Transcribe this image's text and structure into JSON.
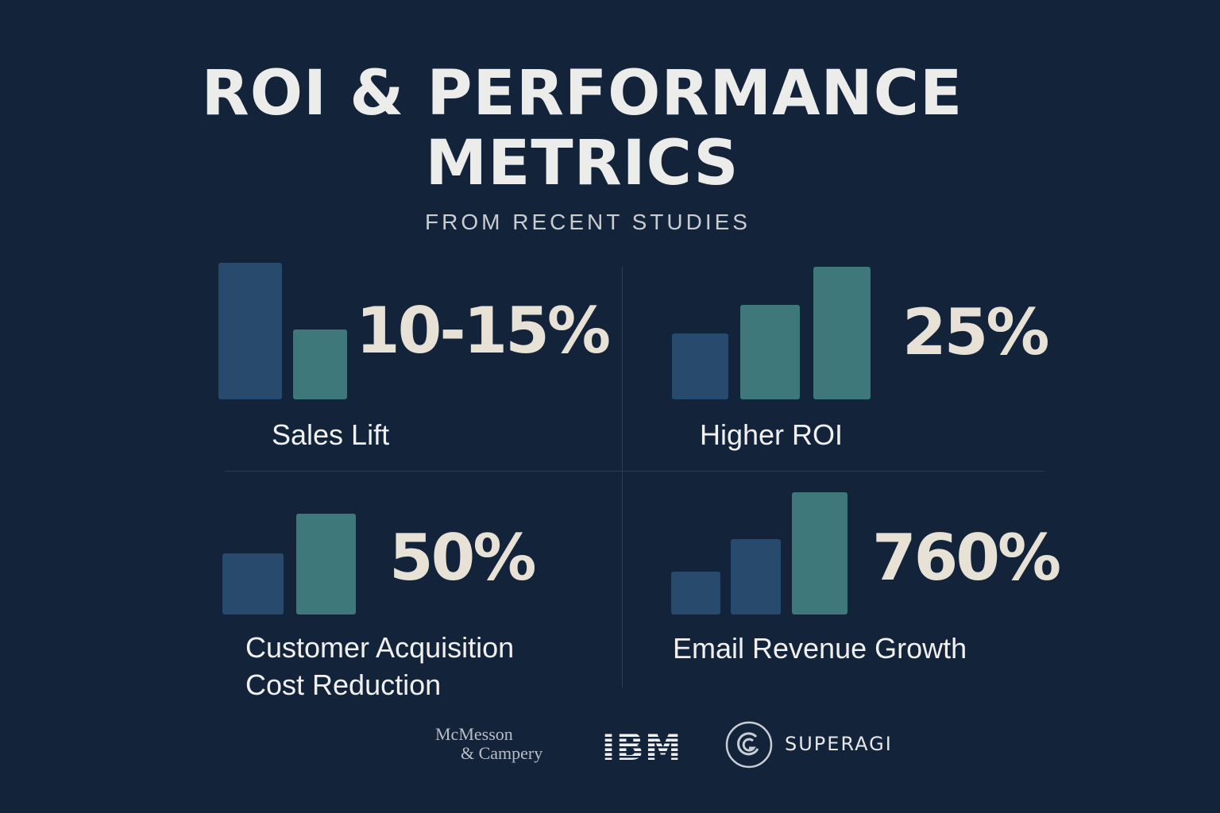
{
  "header": {
    "title_line1": "ROI & PERFORMANCE",
    "title_line2": "METRICS",
    "subtitle": "FROM RECENT STUDIES"
  },
  "colors": {
    "background": "#12233a",
    "bar_blue": "#274a6d",
    "bar_teal": "#3f787a"
  },
  "metrics": [
    {
      "value": "10-15%",
      "label": "Sales Lift"
    },
    {
      "value": "25%",
      "label": "Higher ROI"
    },
    {
      "value": "50%",
      "label_line1": "Customer Acquisition",
      "label_line2": "Cost Reduction"
    },
    {
      "value": "760%",
      "label": "Email Revenue Growth"
    }
  ],
  "sources": {
    "mc_line1": "McMesson",
    "mc_line2": "& Campery",
    "ibm": "IBM",
    "superagi": "SUPERAGI"
  }
}
